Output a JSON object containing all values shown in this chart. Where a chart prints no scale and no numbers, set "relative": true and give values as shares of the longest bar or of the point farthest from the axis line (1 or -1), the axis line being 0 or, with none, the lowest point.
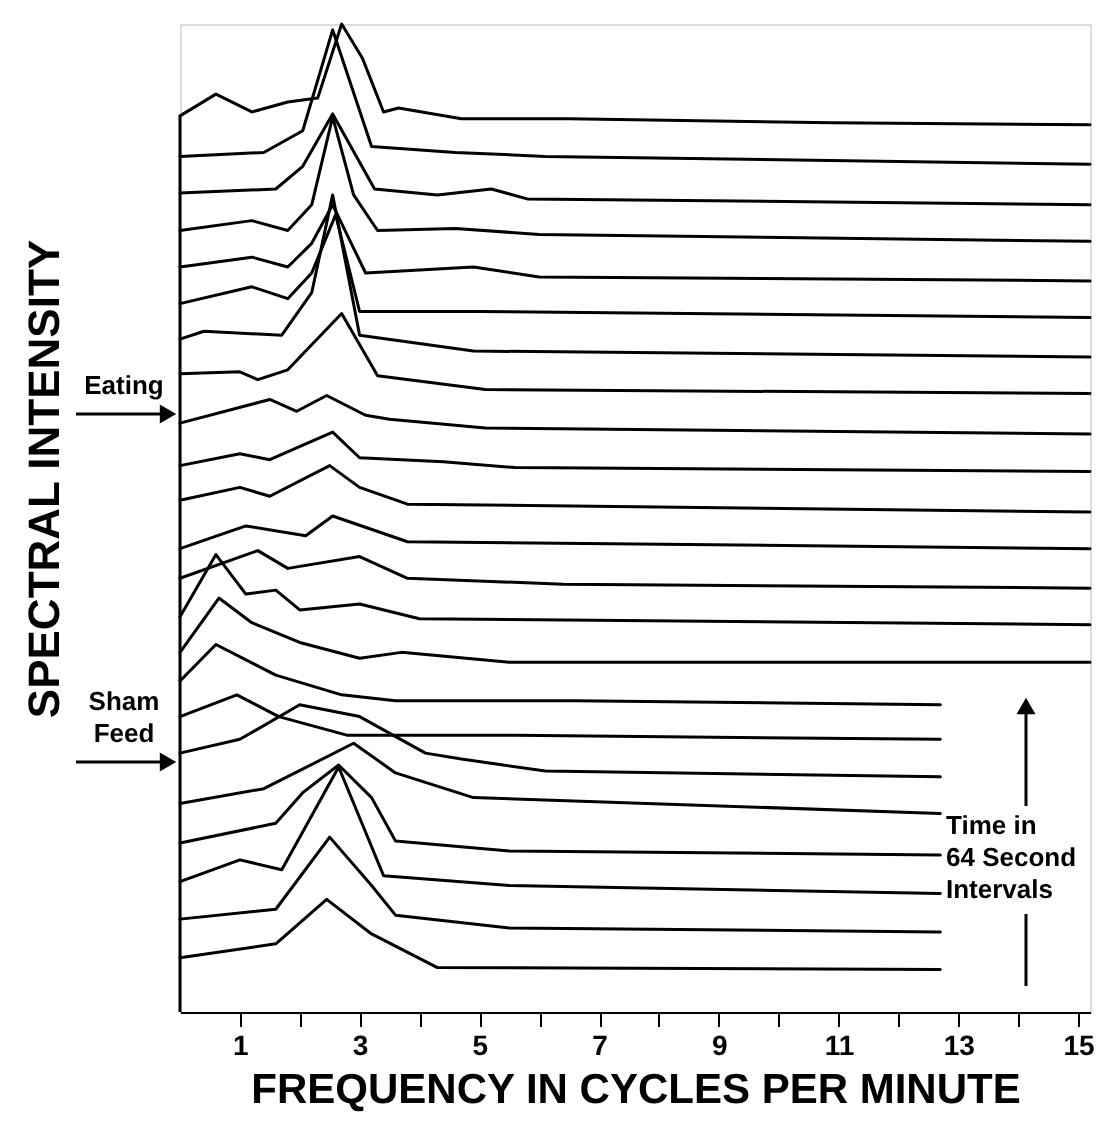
{
  "chart_data": {
    "type": "line",
    "relative": true,
    "xlabel": "FREQUENCY IN CYCLES PER MINUTE",
    "ylabel": "SPECTRAL INTENSITY",
    "xlim": [
      0,
      15.2
    ],
    "xticks": [
      1,
      {
        "value": 2,
        "label": null
      },
      3,
      {
        "value": 4,
        "label": null
      },
      5,
      {
        "value": 6,
        "label": null
      },
      7,
      {
        "value": 8,
        "label": null
      },
      9,
      {
        "value": 10,
        "label": null
      },
      11,
      {
        "value": 12,
        "label": null
      },
      13,
      {
        "value": 14,
        "label": null
      },
      15
    ],
    "annotations": [
      "Eating",
      "Sham Feed",
      "Time in 64 Second Intervals"
    ],
    "series": [
      {
        "color": "#000000",
        "x": [
          0,
          0.6,
          1.2,
          1.8,
          2.3,
          2.7,
          3.05,
          3.4,
          3.65,
          4.7,
          6.5,
          10.9,
          15.2
        ],
        "values": [
          0.907,
          0.929,
          0.911,
          0.921,
          0.925,
          1.0,
          0.965,
          0.911,
          0.915,
          0.904,
          0.904,
          0.9,
          0.898
        ]
      },
      {
        "color": "#000000",
        "x": [
          0,
          1.4,
          2.05,
          2.55,
          3.2,
          4.6,
          6.1,
          15.2
        ],
        "values": [
          0.866,
          0.87,
          0.892,
          0.994,
          0.876,
          0.87,
          0.866,
          0.858
        ]
      },
      {
        "color": "#000000",
        "x": [
          0,
          1.6,
          2.05,
          2.55,
          3.25,
          4.3,
          5.2,
          5.8,
          15.2
        ],
        "values": [
          0.829,
          0.833,
          0.856,
          0.909,
          0.833,
          0.827,
          0.833,
          0.823,
          0.817
        ]
      },
      {
        "color": "#000000",
        "x": [
          0,
          1.2,
          1.8,
          2.2,
          2.55,
          2.9,
          3.3,
          4.6,
          6,
          15.2
        ],
        "values": [
          0.791,
          0.801,
          0.791,
          0.817,
          0.906,
          0.827,
          0.791,
          0.793,
          0.787,
          0.78
        ]
      },
      {
        "color": "#000000",
        "x": [
          0,
          1.2,
          1.8,
          2.2,
          2.55,
          3.1,
          4.9,
          6,
          15.2
        ],
        "values": [
          0.754,
          0.764,
          0.754,
          0.778,
          0.817,
          0.748,
          0.754,
          0.744,
          0.74
        ]
      },
      {
        "color": "#000000",
        "x": [
          0,
          1.2,
          1.8,
          2.2,
          2.6,
          3.0,
          5,
          15.2
        ],
        "values": [
          0.717,
          0.734,
          0.722,
          0.748,
          0.807,
          0.709,
          0.709,
          0.703
        ]
      },
      {
        "color": "#000000",
        "x": [
          0,
          0.4,
          1.7,
          2.2,
          2.55,
          3.0,
          4.9,
          15.2
        ],
        "values": [
          0.681,
          0.689,
          0.685,
          0.728,
          0.827,
          0.685,
          0.669,
          0.663
        ]
      },
      {
        "color": "#000000",
        "x": [
          0,
          1.0,
          1.3,
          1.8,
          2.7,
          3.3,
          5.1,
          15.2
        ],
        "values": [
          0.646,
          0.648,
          0.64,
          0.65,
          0.707,
          0.644,
          0.63,
          0.626
        ]
      },
      {
        "color": "#000000",
        "x": [
          0,
          1.5,
          1.95,
          2.45,
          3.1,
          3.5,
          5.1,
          15.2
        ],
        "values": [
          0.596,
          0.62,
          0.608,
          0.624,
          0.604,
          0.6,
          0.591,
          0.585
        ]
      },
      {
        "color": "#000000",
        "x": [
          0,
          1.0,
          1.5,
          2.55,
          3.0,
          4.4,
          5.6,
          15.2
        ],
        "values": [
          0.553,
          0.565,
          0.559,
          0.587,
          0.561,
          0.557,
          0.551,
          0.547
        ]
      },
      {
        "color": "#000000",
        "x": [
          0,
          1.0,
          1.5,
          2.5,
          3.0,
          3.8,
          15.2
        ],
        "values": [
          0.518,
          0.531,
          0.522,
          0.553,
          0.531,
          0.514,
          0.506
        ]
      },
      {
        "color": "#000000",
        "x": [
          0,
          1.1,
          2.1,
          2.55,
          3.8,
          15.2
        ],
        "values": [
          0.469,
          0.492,
          0.482,
          0.502,
          0.476,
          0.469
        ]
      },
      {
        "color": "#000000",
        "x": [
          0,
          1.3,
          1.8,
          3.0,
          3.8,
          6.4,
          15.2
        ],
        "values": [
          0.439,
          0.467,
          0.449,
          0.461,
          0.439,
          0.433,
          0.429
        ]
      },
      {
        "color": "#000000",
        "x": [
          0,
          0.6,
          1.1,
          1.6,
          2.0,
          3.0,
          4.0,
          15.2
        ],
        "values": [
          0.4,
          0.463,
          0.423,
          0.427,
          0.407,
          0.413,
          0.398,
          0.392
        ]
      },
      {
        "color": "#000000",
        "x": [
          0,
          0.65,
          1.2,
          2.0,
          3.0,
          3.7,
          5.5,
          15.2
        ],
        "values": [
          0.364,
          0.419,
          0.394,
          0.374,
          0.358,
          0.364,
          0.354,
          0.354
        ]
      },
      {
        "color": "#000000",
        "x": [
          0,
          0.6,
          1.6,
          2.7,
          3.6,
          6.6,
          12.7
        ],
        "values": [
          0.335,
          0.372,
          0.341,
          0.321,
          0.315,
          0.315,
          0.311
        ]
      },
      {
        "color": "#000000",
        "x": [
          0,
          0.95,
          1.65,
          2.8,
          5.6,
          12.7
        ],
        "values": [
          0.299,
          0.321,
          0.299,
          0.28,
          0.28,
          0.276
        ]
      },
      {
        "color": "#000000",
        "x": [
          0,
          1.0,
          2.0,
          3.0,
          4.1,
          4.7,
          6.1,
          12.7
        ],
        "values": [
          0.262,
          0.276,
          0.311,
          0.299,
          0.262,
          0.256,
          0.244,
          0.238
        ]
      },
      {
        "color": "#000000",
        "x": [
          0,
          1.4,
          2.9,
          3.6,
          4.9,
          12.7
        ],
        "values": [
          0.211,
          0.226,
          0.272,
          0.242,
          0.217,
          0.201
        ]
      },
      {
        "color": "#000000",
        "x": [
          0,
          1.6,
          2.05,
          2.65,
          3.2,
          3.6,
          5.5,
          12.7
        ],
        "values": [
          0.171,
          0.191,
          0.222,
          0.25,
          0.217,
          0.173,
          0.163,
          0.159
        ]
      },
      {
        "color": "#000000",
        "x": [
          0,
          1.0,
          1.7,
          2.65,
          3.4,
          5.5,
          12.7
        ],
        "values": [
          0.132,
          0.154,
          0.144,
          0.248,
          0.138,
          0.128,
          0.12
        ]
      },
      {
        "color": "#000000",
        "x": [
          0,
          1.6,
          2.5,
          3.2,
          3.6,
          5.5,
          12.7
        ],
        "values": [
          0.094,
          0.104,
          0.177,
          0.128,
          0.098,
          0.085,
          0.081
        ]
      },
      {
        "color": "#000000",
        "x": [
          0,
          1.6,
          2.45,
          3.2,
          4.3,
          12.7
        ],
        "values": [
          0.055,
          0.069,
          0.114,
          0.079,
          0.045,
          0.043
        ]
      }
    ]
  }
}
